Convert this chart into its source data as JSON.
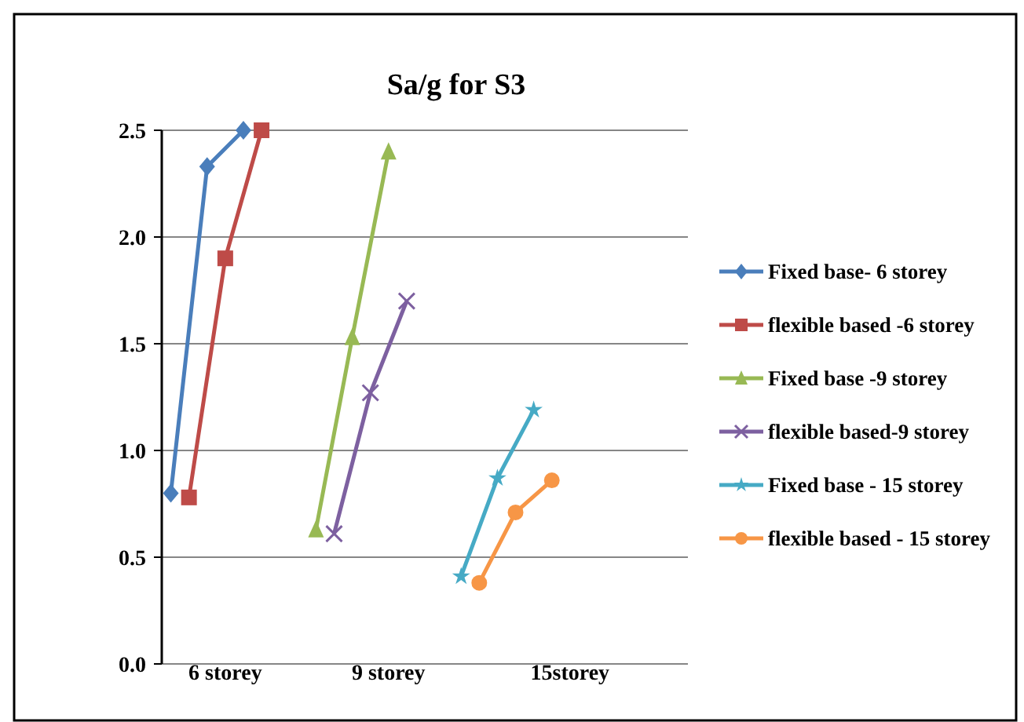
{
  "chart_data": {
    "type": "line",
    "title": "Sa/g for S3",
    "categories": [
      null,
      null,
      null,
      "6 storey",
      null,
      null,
      null,
      null,
      null,
      null,
      null,
      null,
      "9 storey",
      null,
      null,
      null,
      null,
      null,
      null,
      null,
      null,
      null,
      "15storey",
      null,
      null,
      null,
      null,
      null,
      null
    ],
    "series": [
      {
        "name": "Fixed base- 6 storey",
        "color": "#4a7ebb",
        "marker": "diamond",
        "values": [
          0.8,
          null,
          2.33,
          null,
          2.5,
          null,
          null,
          null,
          null,
          null,
          null,
          null,
          null,
          null,
          null,
          null,
          null,
          null,
          null,
          null,
          null,
          null,
          null,
          null,
          null,
          null,
          null,
          null,
          null
        ]
      },
      {
        "name": "flexible based -6 storey",
        "color": "#be4b48",
        "marker": "square",
        "values": [
          null,
          0.78,
          null,
          1.9,
          null,
          2.5,
          null,
          null,
          null,
          null,
          null,
          null,
          null,
          null,
          null,
          null,
          null,
          null,
          null,
          null,
          null,
          null,
          null,
          null,
          null,
          null,
          null,
          null,
          null
        ]
      },
      {
        "name": "Fixed base -9 storey",
        "color": "#98b954",
        "marker": "triangle",
        "values": [
          null,
          null,
          null,
          null,
          null,
          null,
          null,
          null,
          0.63,
          null,
          1.53,
          null,
          2.4,
          null,
          null,
          null,
          null,
          null,
          null,
          null,
          null,
          null,
          null,
          null,
          null,
          null,
          null,
          null,
          null
        ]
      },
      {
        "name": "flexible based-9 storey",
        "color": "#7d60a0",
        "marker": "cross",
        "values": [
          null,
          null,
          null,
          null,
          null,
          null,
          null,
          null,
          null,
          0.61,
          null,
          1.27,
          null,
          1.7,
          null,
          null,
          null,
          null,
          null,
          null,
          null,
          null,
          null,
          null,
          null,
          null,
          null,
          null,
          null
        ]
      },
      {
        "name": "Fixed base - 15 storey",
        "color": "#46aac5",
        "marker": "star",
        "values": [
          null,
          null,
          null,
          null,
          null,
          null,
          null,
          null,
          null,
          null,
          null,
          null,
          null,
          null,
          null,
          null,
          0.41,
          null,
          0.87,
          null,
          1.19,
          null,
          null,
          null,
          null,
          null,
          null,
          null,
          null
        ]
      },
      {
        "name": "flexible based - 15 storey",
        "color": "#f79646",
        "marker": "circle",
        "values": [
          null,
          null,
          null,
          null,
          null,
          null,
          null,
          null,
          null,
          null,
          null,
          null,
          null,
          null,
          null,
          null,
          null,
          0.38,
          null,
          0.71,
          null,
          0.86,
          null,
          null,
          null,
          null,
          null,
          null,
          null
        ]
      }
    ],
    "ylim": [
      0,
      2.5
    ],
    "yticks": [
      {
        "value": 0,
        "label": "0.0"
      },
      {
        "value": 0.5,
        "label": "0.5"
      },
      {
        "value": 1,
        "label": "1.0"
      },
      {
        "value": 1.5,
        "label": "1.5"
      },
      {
        "value": 2,
        "label": "2.0"
      },
      {
        "value": 2.5,
        "label": "2.5"
      }
    ],
    "grid": "y",
    "legend": "right"
  }
}
